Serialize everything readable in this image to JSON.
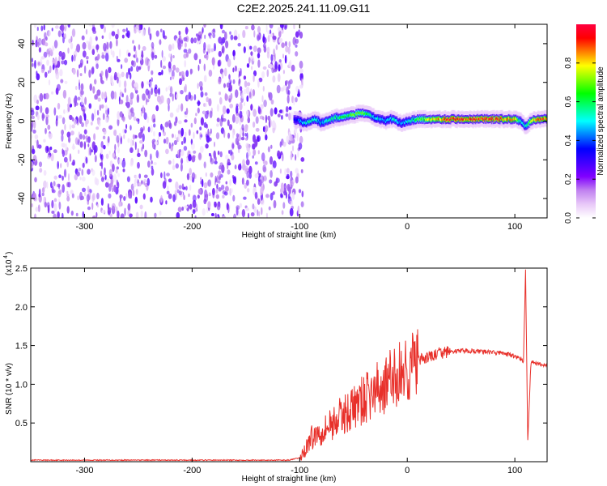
{
  "title": "C2E2.2025.241.11.09.G11",
  "chart_data": [
    {
      "type": "heatmap",
      "title": "C2E2.2025.241.11.09.G11",
      "xlabel": "Height of straight line (km)",
      "ylabel": "Frequency (Hz)",
      "xlim": [
        -350,
        130
      ],
      "ylim": [
        -50,
        50
      ],
      "xticks": [
        "-300",
        "-200",
        "-100",
        "0",
        "100"
      ],
      "yticks": [
        "-40",
        "-20",
        "0",
        "20",
        "40"
      ],
      "colorbar": {
        "label": "Normalized spectral amplitude",
        "range": [
          0,
          1
        ],
        "ticks": [
          "0.0",
          "0.2",
          "0.4",
          "0.6",
          "0.8"
        ],
        "colormap": [
          "#ffffff",
          "#e8c8f8",
          "#c080f0",
          "#8000ff",
          "#4000ff",
          "#0000ff",
          "#0080ff",
          "#00ffff",
          "#00ff80",
          "#00ff00",
          "#80ff00",
          "#ffff00",
          "#ff8000",
          "#ff0000",
          "#ff0040"
        ]
      },
      "noise_region_x": [
        -350,
        -100
      ],
      "noise_level": 0.1,
      "signal_track": {
        "x": [
          -105,
          -100,
          -95,
          -90,
          -85,
          -80,
          -75,
          -70,
          -65,
          -60,
          -55,
          -50,
          -45,
          -40,
          -35,
          -30,
          -25,
          -20,
          -15,
          -10,
          -5,
          0,
          10,
          20,
          30,
          40,
          50,
          60,
          70,
          80,
          90,
          100,
          105,
          110,
          115,
          120,
          130
        ],
        "y": [
          1,
          0,
          -1,
          0,
          1,
          -1,
          0,
          1,
          2,
          2,
          3,
          3,
          4,
          4,
          3,
          2,
          1,
          0,
          1,
          0,
          -1,
          0,
          1,
          1,
          1,
          1,
          1,
          1,
          1,
          1,
          1,
          1,
          0,
          -3,
          0,
          1,
          1
        ],
        "amplitude": [
          0.3,
          0.45,
          0.5,
          0.55,
          0.55,
          0.5,
          0.5,
          0.55,
          0.6,
          0.65,
          0.65,
          0.7,
          0.7,
          0.65,
          0.55,
          0.5,
          0.5,
          0.45,
          0.5,
          0.5,
          0.45,
          0.5,
          0.65,
          0.75,
          0.85,
          0.95,
          0.95,
          0.95,
          0.95,
          0.95,
          0.9,
          0.85,
          0.6,
          0.5,
          0.75,
          0.9,
          0.9
        ]
      }
    },
    {
      "type": "line",
      "xlabel": "Height of straight line (km)",
      "ylabel": "SNR (10 * v/v)",
      "multiplier_label": "(x10",
      "multiplier_exp": "4",
      "multiplier_close": ")",
      "xlim": [
        -350,
        130
      ],
      "ylim": [
        0,
        2.5
      ],
      "xticks": [
        "-300",
        "-200",
        "-100",
        "0",
        "100"
      ],
      "yticks": [
        "0.5",
        "1.0",
        "1.5",
        "2.0",
        "2.5"
      ],
      "color": "#e8302a",
      "series": [
        {
          "x": [
            -350,
            -300,
            -250,
            -200,
            -150,
            -110,
            -100,
            -95,
            -90,
            -85,
            -80,
            -75,
            -70,
            -65,
            -60,
            -55,
            -50,
            -45,
            -40,
            -35,
            -30,
            -25,
            -20,
            -15,
            -10,
            -5,
            0,
            5,
            10,
            20,
            30,
            40,
            50,
            60,
            70,
            80,
            90,
            100,
            105,
            108,
            110,
            112,
            115,
            120,
            130
          ],
          "y": [
            0.02,
            0.02,
            0.02,
            0.02,
            0.02,
            0.02,
            0.05,
            0.15,
            0.3,
            0.35,
            0.4,
            0.45,
            0.5,
            0.55,
            0.6,
            0.65,
            0.7,
            0.75,
            0.8,
            0.85,
            0.9,
            0.95,
            1.0,
            1.05,
            1.1,
            1.15,
            1.2,
            1.25,
            1.3,
            1.35,
            1.4,
            1.42,
            1.43,
            1.43,
            1.42,
            1.41,
            1.4,
            1.36,
            1.33,
            1.3,
            2.5,
            0.25,
            1.3,
            1.27,
            1.24
          ]
        }
      ]
    }
  ]
}
